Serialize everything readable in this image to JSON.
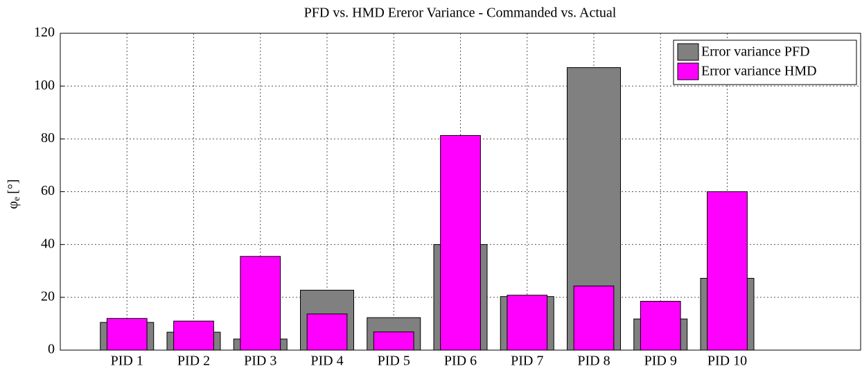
{
  "chart_data": {
    "type": "bar",
    "title": "PFD vs. HMD Ereror Variance - Commanded vs. Actual",
    "y_label": {
      "symbol": "φ",
      "subscript": "e",
      "unit": "[°]"
    },
    "categories": [
      "PID 1",
      "PID 2",
      "PID 3",
      "PID 4",
      "PID 5",
      "PID 6",
      "PID 7",
      "PID 8",
      "PID 9",
      "PID 10"
    ],
    "series": [
      {
        "name": "Error variance PFD",
        "color": "#808080",
        "values": [
          10.5,
          6.8,
          4.2,
          22.7,
          12.3,
          40,
          20.3,
          107,
          11.8,
          27.2
        ]
      },
      {
        "name": "Error variance HMD",
        "color": "#ff00ff",
        "values": [
          12,
          11,
          35.5,
          13.7,
          6.9,
          81.3,
          20.8,
          24.3,
          18.5,
          60
        ]
      }
    ],
    "xlim": [
      0,
      12
    ],
    "ylim": [
      0,
      120
    ],
    "yticks": [
      0,
      20,
      40,
      60,
      80,
      100,
      120
    ],
    "grid": true,
    "legend": "upper right"
  }
}
